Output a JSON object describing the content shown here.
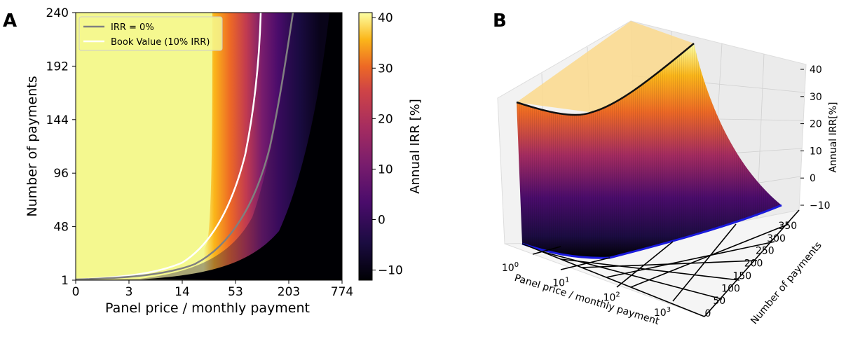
{
  "chart_data": [
    {
      "panel_label": "A",
      "type": "heatmap",
      "xlabel": "Panel price / monthly payment",
      "ylabel": "Number of payments",
      "x_ticks": [
        "0",
        "3",
        "14",
        "53",
        "203",
        "774"
      ],
      "y_ticks": [
        "1",
        "48",
        "96",
        "144",
        "192",
        "240"
      ],
      "ylim": [
        1,
        240
      ],
      "colorbar": {
        "label": "Annual IRR [%]",
        "ticks": [
          "−10",
          "0",
          "10",
          "20",
          "30",
          "40"
        ],
        "range": [
          -12,
          41
        ],
        "colormap": "inferno"
      },
      "legend": {
        "position": "top-left",
        "entries": [
          {
            "label": "IRR = 0%",
            "color": "#808080"
          },
          {
            "label": "Book Value (10% IRR)",
            "color": "#ffffff"
          }
        ]
      },
      "contours": [
        {
          "name": "IRR = 0%",
          "x_at_n": [
            [
              1,
              3
            ],
            [
              12,
              14
            ],
            [
              48,
              53
            ],
            [
              96,
              100
            ],
            [
              144,
              150
            ],
            [
              192,
              190
            ],
            [
              240,
              203
            ]
          ]
        },
        {
          "name": "Book Value (10% IRR)",
          "x_at_n": [
            [
              1,
              3
            ],
            [
              12,
              12
            ],
            [
              48,
              30
            ],
            [
              96,
              46
            ],
            [
              144,
              58
            ],
            [
              192,
              63
            ],
            [
              240,
              66
            ]
          ]
        }
      ]
    },
    {
      "panel_label": "B",
      "type": "surface",
      "xlabel": "Panel price / monthly payment",
      "ylabel": "Number of payments",
      "zlabel": "Annual IRR[%]",
      "x_ticks": [
        "10",
        "10",
        "10",
        "10"
      ],
      "x_tick_exponents": [
        "0",
        "1",
        "2",
        "3"
      ],
      "y_ticks": [
        "0",
        "50",
        "100",
        "150",
        "200",
        "250",
        "300",
        "350"
      ],
      "z_ticks": [
        "−10",
        "0",
        "10",
        "20",
        "30",
        "40"
      ],
      "zlim": [
        -10,
        40
      ],
      "colormap": "inferno"
    }
  ]
}
